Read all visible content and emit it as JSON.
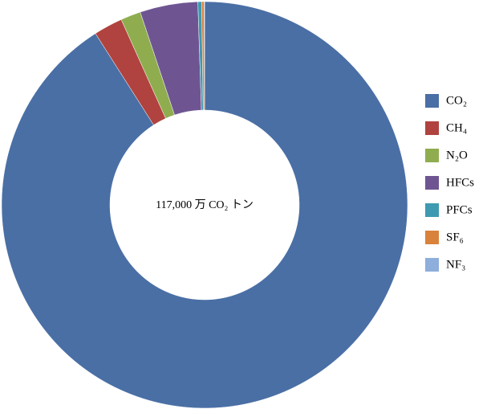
{
  "chart_data": {
    "type": "donut",
    "center_label": "117,000 万 CO₂ トン",
    "categories": [
      "CO₂",
      "CH₄",
      "N₂O",
      "HFCs",
      "PFCs",
      "SF₆",
      "NF₃"
    ],
    "values": [
      90.9,
      2.3,
      1.6,
      4.6,
      0.3,
      0.2,
      0.03
    ],
    "colors": [
      "#4a6fa5",
      "#b0433f",
      "#8fad4f",
      "#6e5592",
      "#3d9ab0",
      "#d9823c",
      "#8eaedb"
    ],
    "legend": "right"
  }
}
